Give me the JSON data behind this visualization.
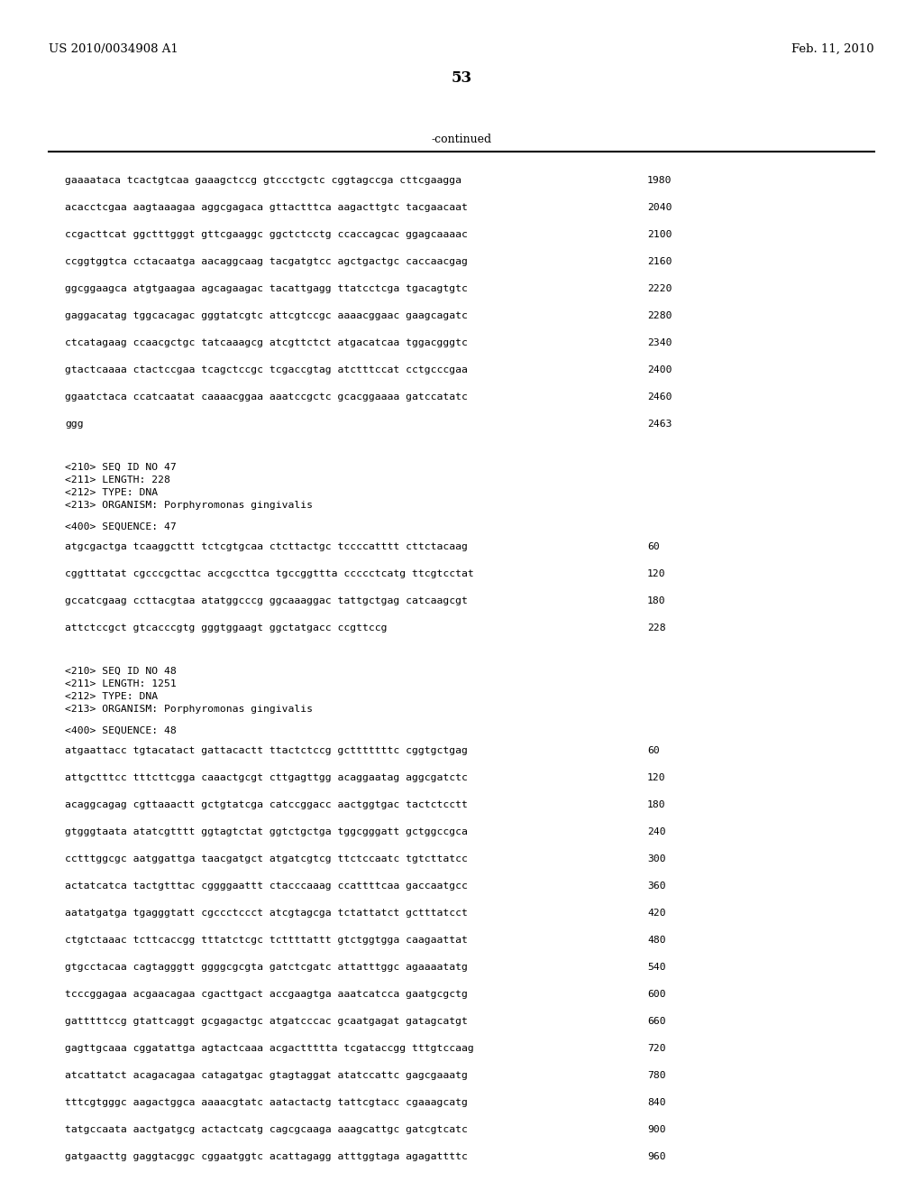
{
  "header_left": "US 2010/0034908 A1",
  "header_right": "Feb. 11, 2010",
  "page_number": "53",
  "continued_label": "-continued",
  "bg_color": "#ffffff",
  "text_color": "#000000",
  "continued_lines": [
    {
      "text": "gaaaataca tcactgtcaa gaaagctccg gtccctgctc cggtagccga cttcgaagga",
      "num": "1980"
    },
    {
      "text": "acacctcgaa aagtaaagaa aggcgagaca gttactttca aagacttgtc tacgaacaat",
      "num": "2040"
    },
    {
      "text": "ccgacttcat ggctttgggt gttcgaaggc ggctctcctg ccaccagcac ggagcaaaac",
      "num": "2100"
    },
    {
      "text": "ccggtggtca cctacaatga aacaggcaag tacgatgtcc agctgactgc caccaacgag",
      "num": "2160"
    },
    {
      "text": "ggcggaagca atgtgaagaa agcagaagac tacattgagg ttatcctcga tgacagtgtc",
      "num": "2220"
    },
    {
      "text": "gaggacatag tggcacagac gggtatcgtc attcgtccgc aaaacggaac gaagcagatc",
      "num": "2280"
    },
    {
      "text": "ctcatagaag ccaacgctgc tatcaaagcg atcgttctct atgacatcaa tggacgggtc",
      "num": "2340"
    },
    {
      "text": "gtactcaaaa ctactccgaa tcagctccgc tcgaccgtag atctttccat cctgcccgaa",
      "num": "2400"
    },
    {
      "text": "ggaatctaca ccatcaatat caaaacggaa aaatccgctc gcacggaaaa gatccatatc",
      "num": "2460"
    },
    {
      "text": "ggg",
      "num": "2463"
    }
  ],
  "seq47_meta": [
    "<210> SEQ ID NO 47",
    "<211> LENGTH: 228",
    "<212> TYPE: DNA",
    "<213> ORGANISM: Porphyromonas gingivalis"
  ],
  "seq47_seq_label": "<400> SEQUENCE: 47",
  "seq47_lines": [
    {
      "text": "atgcgactga tcaaggcttt tctcgtgcaa ctcttactgc tccccatttt cttctacaag",
      "num": "60"
    },
    {
      "text": "cggtttatat cgcccgcttac accgccttca tgccggttta ccccctcatg ttcgtcctat",
      "num": "120"
    },
    {
      "text": "gccatcgaag ccttacgtaa atatggcccg ggcaaaggac tattgctgag catcaagcgt",
      "num": "180"
    },
    {
      "text": "attctccgct gtcacccgtg gggtggaagt ggctatgacc ccgttccg",
      "num": "228"
    }
  ],
  "seq48_meta": [
    "<210> SEQ ID NO 48",
    "<211> LENGTH: 1251",
    "<212> TYPE: DNA",
    "<213> ORGANISM: Porphyromonas gingivalis"
  ],
  "seq48_seq_label": "<400> SEQUENCE: 48",
  "seq48_lines": [
    {
      "text": "atgaattacc tgtacatact gattacactt ttactctccg gctttttttc cggtgctgag",
      "num": "60"
    },
    {
      "text": "attgctttcc tttcttcgga caaactgcgt cttgagttgg acaggaatag aggcgatctc",
      "num": "120"
    },
    {
      "text": "acaggcagag cgttaaactt gctgtatcga catccggacc aactggtgac tactctcctt",
      "num": "180"
    },
    {
      "text": "gtgggtaata atatcgtttt ggtagtctat ggtctgctga tggcgggatt gctggccgca",
      "num": "240"
    },
    {
      "text": "cctttggcgc aatggattga taacgatgct atgatcgtcg ttctccaatc tgtcttatcc",
      "num": "300"
    },
    {
      "text": "actatcatca tactgtttac cggggaattt ctacccaaag ccattttcaa gaccaatgcc",
      "num": "360"
    },
    {
      "text": "aatatgatga tgagggtatt cgccctccct atcgtagcga tctattatct gctttatcct",
      "num": "420"
    },
    {
      "text": "ctgtctaaac tcttcaccgg tttatctcgc tcttttattt gtctggtgga caagaattat",
      "num": "480"
    },
    {
      "text": "gtgcctacaa cagtagggtt ggggcgcgta gatctcgatc attatttggc agaaaatatg",
      "num": "540"
    },
    {
      "text": "tcccggagaa acgaacagaa cgacttgact accgaagtga aaatcatcca gaatgcgctg",
      "num": "600"
    },
    {
      "text": "gatttttccg gtattcaggt gcgagactgc atgatcccac gcaatgagat gatagcatgt",
      "num": "660"
    },
    {
      "text": "gagttgcaaa cggatattga agtactcaaa acgacttttta tcgataccgg tttgtccaag",
      "num": "720"
    },
    {
      "text": "atcattatct acagacagaa catagatgac gtagtaggat atatccattc gagcgaaatg",
      "num": "780"
    },
    {
      "text": "tttcgtgggc aagactggca aaaacgtatc aatactactg tattcgtacc cgaaagcatg",
      "num": "840"
    },
    {
      "text": "tatgccaata aactgatgcg actactcatg cagcgcaaga aaagcattgc gatcgtcatc",
      "num": "900"
    },
    {
      "text": "gatgaacttg gaggtacggc cggaatggtc acattagagg atttggtaga agagattttc",
      "num": "960"
    }
  ]
}
